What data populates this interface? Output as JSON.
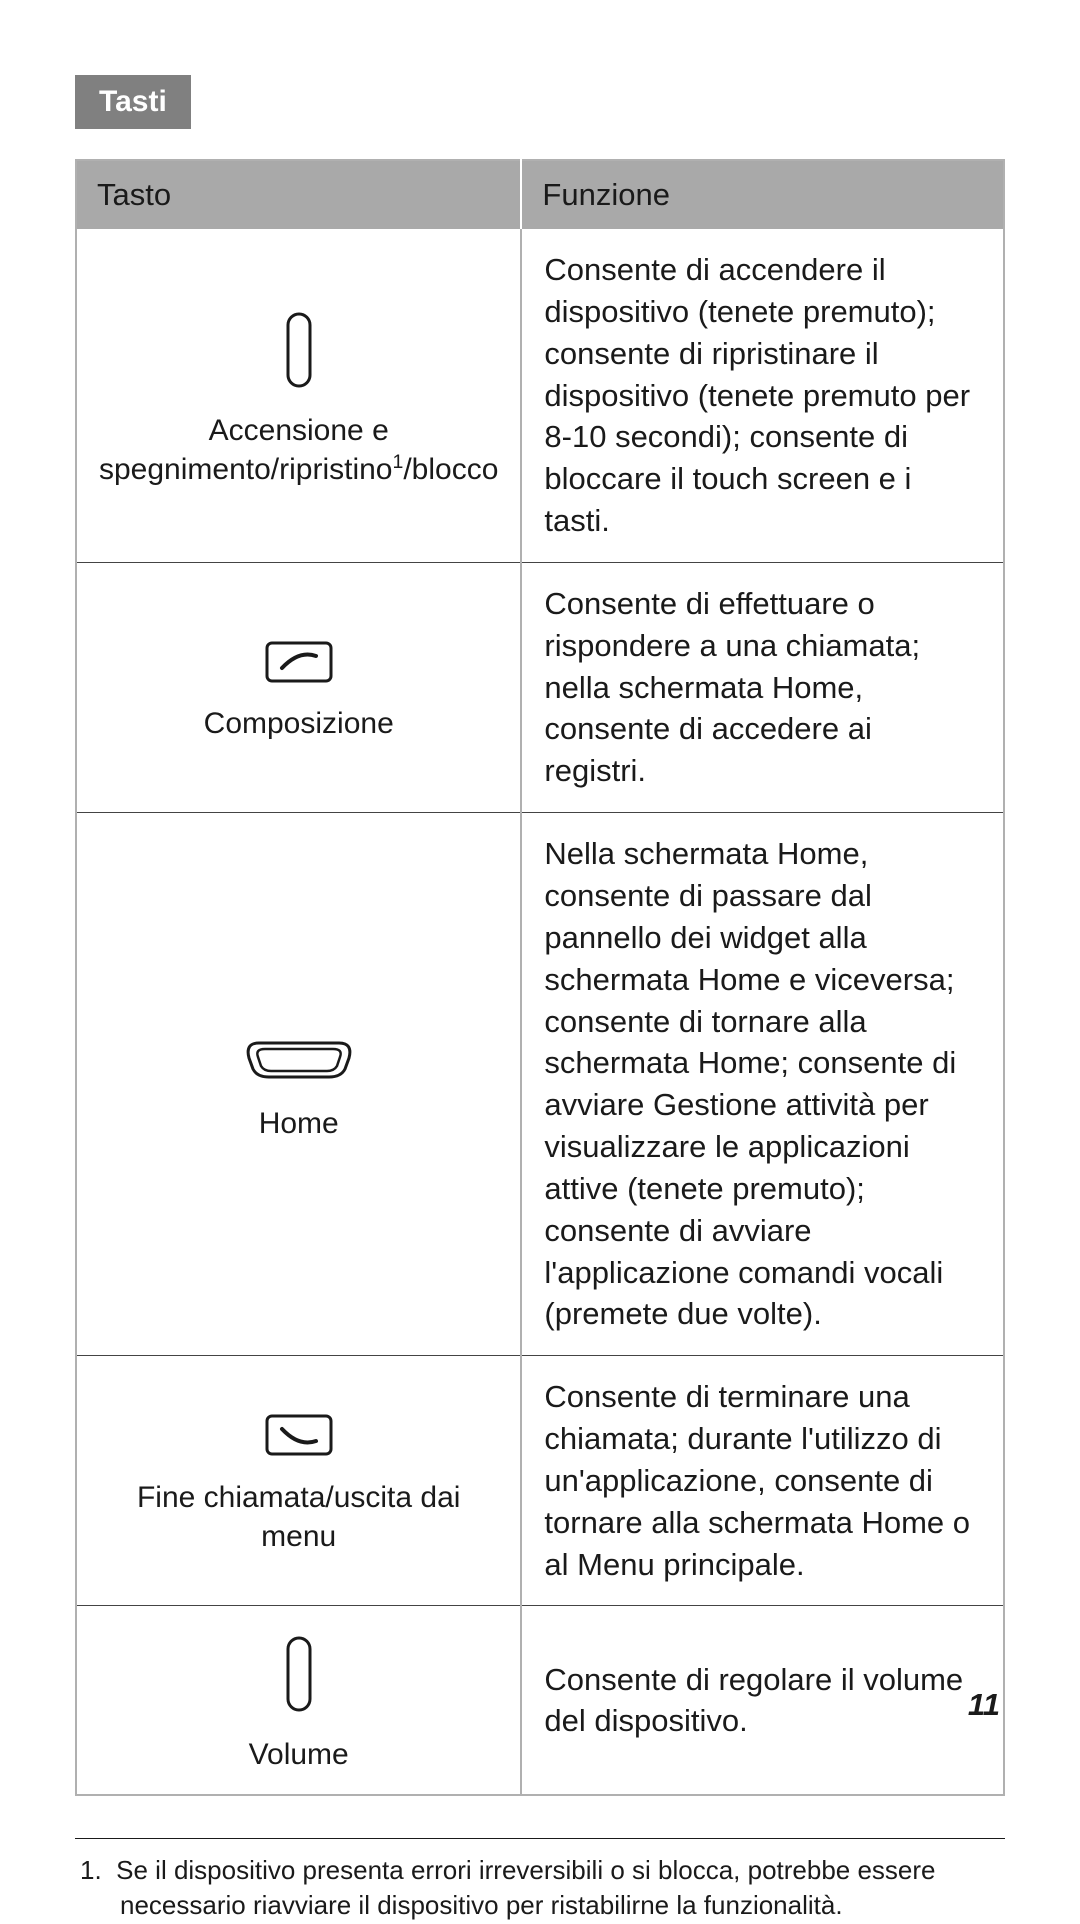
{
  "section_title": "Tasti",
  "table": {
    "header": {
      "col1": "Tasto",
      "col2": "Funzione"
    },
    "rows": [
      {
        "label_html": "Accensione e spegnimento/ripristino<sup>1</sup>/blocco",
        "function": "Consente di accendere il dispositivo (tenete premuto); consente di ripristinare il dispositivo (tenete premuto per 8-10 secondi); consente di bloccare il touch screen e i tasti.",
        "icon": "power"
      },
      {
        "label_html": "Composizione",
        "function": "Consente di effettuare o rispondere a una chiamata; nella schermata Home, consente di accedere ai registri.",
        "icon": "dial"
      },
      {
        "label_html": "Home",
        "function": "Nella schermata Home, consente di passare dal pannello dei widget alla schermata Home e viceversa; consente di tornare alla schermata Home; consente di avviare Gestione attività per visualizzare le applicazioni attive (tenete premuto); consente di avviare l'applicazione comandi vocali (premete due volte).",
        "icon": "home"
      },
      {
        "label_html": "Fine chiamata/uscita dai menu",
        "function": "Consente di terminare una chiamata; durante l'utilizzo di un'applicazione, consente di tornare alla schermata Home o al Menu principale.",
        "icon": "end"
      },
      {
        "label_html": "Volume",
        "function": "Consente di regolare il volume del dispositivo.",
        "icon": "volume"
      }
    ]
  },
  "footnote": {
    "num": "1.",
    "text": "Se il dispositivo presenta errori irreversibili o si blocca, potrebbe essere necessario riavviare il dispositivo per ristabilirne la funzionalità."
  },
  "page_number": "11",
  "colors": {
    "tab_bg": "#808080",
    "header_bg": "#a9a9a9",
    "border": "#b0b0b0",
    "text": "#1a1a1a"
  }
}
